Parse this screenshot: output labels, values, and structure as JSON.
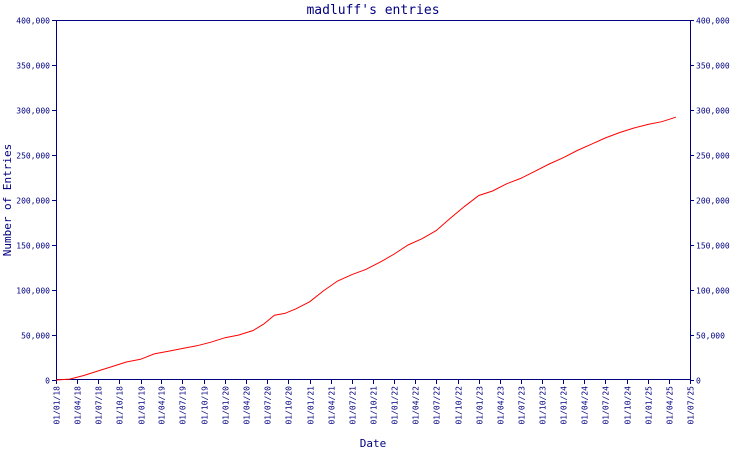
{
  "chart_data": {
    "type": "line",
    "title": "madluff's entries",
    "xlabel": "Date",
    "ylabel": "Number of Entries",
    "ylim": [
      0,
      400000
    ],
    "xlim": [
      "2018-01-01",
      "2025-07-01"
    ],
    "grid": false,
    "legend": "none",
    "yticks": [
      "0",
      "50,000",
      "100,000",
      "150,000",
      "200,000",
      "250,000",
      "300,000",
      "350,000",
      "400,000"
    ],
    "ytick_values": [
      0,
      50000,
      100000,
      150000,
      200000,
      250000,
      300000,
      350000,
      400000
    ],
    "xticks": [
      "01/01/18",
      "01/04/18",
      "01/07/18",
      "01/10/18",
      "01/01/19",
      "01/04/19",
      "01/07/19",
      "01/10/19",
      "01/01/20",
      "01/04/20",
      "01/07/20",
      "01/10/20",
      "01/01/21",
      "01/04/21",
      "01/07/21",
      "01/10/21",
      "01/01/22",
      "01/04/22",
      "01/07/22",
      "01/10/22",
      "01/01/23",
      "01/04/23",
      "01/07/23",
      "01/10/23",
      "01/01/24",
      "01/04/24",
      "01/07/24",
      "01/10/24",
      "01/01/25",
      "01/04/25",
      "01/07/25"
    ],
    "xtick_dates": [
      "2018-01-01",
      "2018-04-01",
      "2018-07-01",
      "2018-10-01",
      "2019-01-01",
      "2019-04-01",
      "2019-07-01",
      "2019-10-01",
      "2020-01-01",
      "2020-04-01",
      "2020-07-01",
      "2020-10-01",
      "2021-01-01",
      "2021-04-01",
      "2021-07-01",
      "2021-10-01",
      "2022-01-01",
      "2022-04-01",
      "2022-07-01",
      "2022-10-01",
      "2023-01-01",
      "2023-04-01",
      "2023-07-01",
      "2023-10-01",
      "2024-01-01",
      "2024-04-01",
      "2024-07-01",
      "2024-10-01",
      "2025-01-01",
      "2025-04-01",
      "2025-07-01"
    ],
    "series": [
      {
        "color": "#ff0000",
        "x": [
          "2018-01-01",
          "2018-03-01",
          "2018-05-01",
          "2018-07-01",
          "2018-09-01",
          "2018-11-01",
          "2019-01-01",
          "2019-03-01",
          "2019-05-01",
          "2019-07-01",
          "2019-09-01",
          "2019-11-01",
          "2020-01-01",
          "2020-03-01",
          "2020-05-01",
          "2020-06-15",
          "2020-08-01",
          "2020-09-15",
          "2020-11-01",
          "2021-01-01",
          "2021-03-01",
          "2021-05-01",
          "2021-07-01",
          "2021-09-01",
          "2021-11-01",
          "2022-01-01",
          "2022-03-01",
          "2022-05-01",
          "2022-07-01",
          "2022-09-01",
          "2022-11-01",
          "2023-01-01",
          "2023-03-01",
          "2023-05-01",
          "2023-07-01",
          "2023-09-01",
          "2023-11-01",
          "2024-01-01",
          "2024-03-01",
          "2024-05-01",
          "2024-07-01",
          "2024-09-01",
          "2024-11-01",
          "2025-01-01",
          "2025-03-01",
          "2025-05-01"
        ],
        "y": [
          0,
          1000,
          5000,
          10000,
          15000,
          20000,
          23000,
          29000,
          32000,
          35000,
          38000,
          42000,
          47000,
          50000,
          55000,
          62000,
          72000,
          74000,
          79000,
          87000,
          99000,
          110000,
          117000,
          123000,
          131000,
          140000,
          150000,
          157000,
          166000,
          180000,
          193000,
          205000,
          210000,
          218000,
          224000,
          232000,
          240000,
          247000,
          255000,
          262000,
          269000,
          275000,
          280000,
          284000,
          287000,
          292000
        ]
      }
    ]
  }
}
